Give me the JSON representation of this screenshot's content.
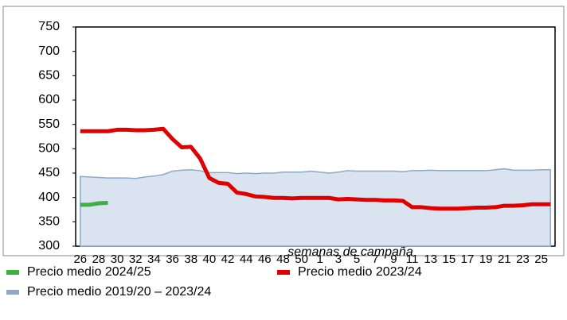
{
  "chart_data": {
    "type": "line",
    "x_label": "semanas de campaña",
    "categories": [
      26,
      null,
      28,
      null,
      30,
      null,
      32,
      null,
      34,
      null,
      36,
      null,
      38,
      null,
      40,
      null,
      42,
      null,
      44,
      null,
      46,
      null,
      48,
      null,
      50,
      null,
      1,
      null,
      3,
      null,
      5,
      null,
      7,
      null,
      9,
      null,
      11,
      null,
      13,
      null,
      15,
      null,
      17,
      null,
      19,
      null,
      21,
      null,
      23,
      null,
      25,
      null
    ],
    "series": [
      {
        "name": "Precio medio 2024/25",
        "color": "#3cb043",
        "values": [
          385,
          385,
          388,
          389,
          null,
          null,
          null,
          null,
          null,
          null,
          null,
          null,
          null,
          null,
          null,
          null,
          null,
          null,
          null,
          null,
          null,
          null,
          null,
          null,
          null,
          null,
          null,
          null,
          null,
          null,
          null,
          null,
          null,
          null,
          null,
          null,
          null,
          null,
          null,
          null,
          null,
          null,
          null,
          null,
          null,
          null,
          null,
          null,
          null,
          null,
          null,
          null
        ]
      },
      {
        "name": "Precio medio 2023/24",
        "color": "#e00000",
        "values": [
          536,
          536,
          536,
          536,
          539,
          539,
          538,
          538,
          539,
          541,
          520,
          503,
          504,
          480,
          440,
          430,
          428,
          410,
          407,
          402,
          401,
          399,
          399,
          398,
          399,
          399,
          399,
          399,
          396,
          397,
          396,
          395,
          395,
          394,
          394,
          393,
          380,
          380,
          378,
          377,
          377,
          377,
          378,
          379,
          379,
          380,
          383,
          383,
          384,
          386,
          386,
          386
        ]
      },
      {
        "name": "Precio medio 2019/20 – 2023/24",
        "color": "#8ea9c8",
        "fill": "#dae3f0",
        "values": [
          443,
          442,
          441,
          440,
          440,
          440,
          439,
          442,
          444,
          447,
          454,
          456,
          457,
          455,
          451,
          451,
          451,
          449,
          450,
          449,
          450,
          450,
          452,
          452,
          452,
          454,
          452,
          450,
          452,
          455,
          454,
          454,
          454,
          454,
          454,
          453,
          455,
          455,
          456,
          455,
          455,
          455,
          455,
          455,
          455,
          457,
          459,
          456,
          456,
          456,
          457,
          457
        ]
      }
    ],
    "ylim": [
      300,
      750
    ],
    "yticks": [
      300,
      350,
      400,
      450,
      500,
      550,
      600,
      650,
      700,
      750
    ],
    "grid": false
  }
}
